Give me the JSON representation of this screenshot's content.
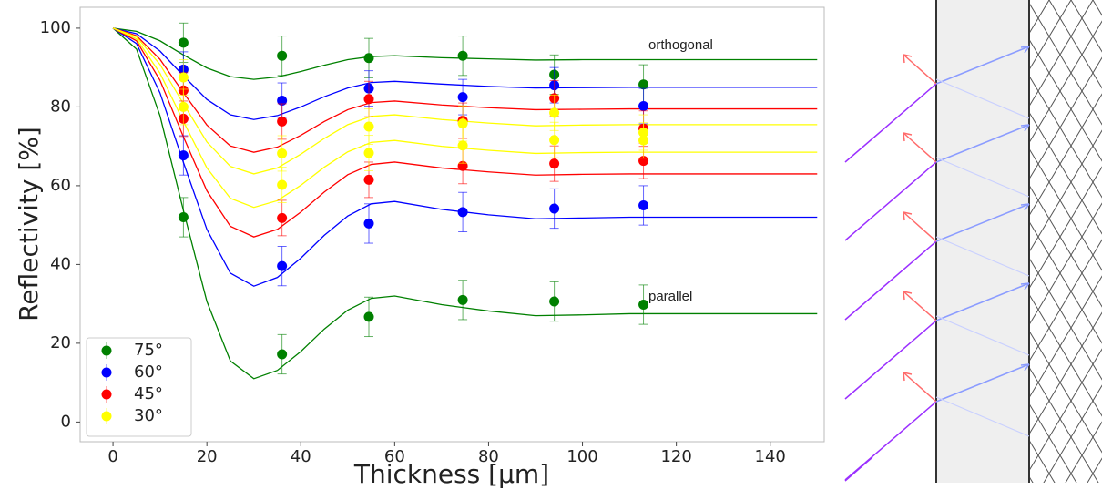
{
  "chart_data": {
    "type": "scatter",
    "xlabel": "Thickness [µm]",
    "ylabel": "Reflectivity [%]",
    "xlim": [
      -7,
      151.5
    ],
    "ylim": [
      -5,
      105.3
    ],
    "xticks": [
      0,
      20,
      40,
      60,
      80,
      100,
      120,
      140
    ],
    "yticks": [
      0,
      20,
      40,
      60,
      80,
      100
    ],
    "legend": "lower left",
    "annotations": [
      "orthogonal",
      "parallel"
    ],
    "x": [
      15,
      36,
      54.5,
      74.5,
      94,
      113
    ],
    "fit_x": [
      0,
      5,
      10,
      15,
      20,
      25,
      30,
      35,
      40,
      45,
      50,
      55,
      60,
      70,
      80,
      90,
      100,
      110,
      120,
      130,
      140,
      150
    ],
    "series": [
      {
        "name": "75°",
        "color": "#008000",
        "groups": [
          {
            "values": [
              96.3,
              93,
              92.4,
              93,
              88.2,
              85.7
            ],
            "error": 5,
            "fit": [
              100,
              99.2,
              96.8,
              93.2,
              89.9,
              87.7,
              87,
              87.6,
              89,
              90.6,
              92,
              92.8,
              93,
              92.5,
              92.2,
              91.9,
              92,
              92,
              92,
              92,
              92,
              92
            ]
          },
          {
            "values": [
              52,
              17.2,
              26.7,
              31,
              30.6,
              29.8
            ],
            "error": 5,
            "fit": [
              100,
              94.7,
              77.8,
              53.7,
              30.6,
              15.5,
              11,
              13.1,
              17.9,
              23.6,
              28.4,
              31.4,
              32,
              29.8,
              28.2,
              27,
              27.2,
              27.5,
              27.5,
              27.5,
              27.5,
              27.5
            ]
          }
        ]
      },
      {
        "name": "60°",
        "color": "#0000ff",
        "groups": [
          {
            "values": [
              89.5,
              81.6,
              84.7,
              82.5,
              85.5,
              80.2
            ],
            "error": 4.5,
            "fit": [
              100,
              98.6,
              94.2,
              87.9,
              81.9,
              78,
              76.8,
              77.8,
              80,
              82.6,
              84.8,
              86.2,
              86.5,
              85.8,
              85.2,
              84.8,
              84.9,
              85,
              85,
              85,
              85,
              85
            ]
          },
          {
            "values": [
              67.7,
              39.6,
              50.4,
              53.3,
              54.2,
              55
            ],
            "error": 5,
            "fit": [
              100,
              96.1,
              83.6,
              65.9,
              48.9,
              37.8,
              34.5,
              36.7,
              41.6,
              47.4,
              52.3,
              55.4,
              56,
              54,
              52.6,
              51.6,
              51.8,
              52,
              52,
              52,
              52,
              52
            ]
          }
        ]
      },
      {
        "name": "45°",
        "color": "#ff0000",
        "groups": [
          {
            "values": [
              84.2,
              76.3,
              82,
              76.5,
              82.2,
              74.5
            ],
            "error": 4.5,
            "fit": [
              100,
              98.1,
              92.1,
              83.6,
              75.4,
              70.1,
              68.5,
              69.8,
              72.8,
              76.3,
              79.3,
              81.1,
              81.5,
              80.5,
              79.8,
              79.3,
              79.4,
              79.5,
              79.5,
              79.5,
              79.5,
              79.5
            ]
          },
          {
            "values": [
              77,
              51.8,
              61.5,
              65,
              65.6,
              66.3
            ],
            "error": 4.5,
            "fit": [
              100,
              96.8,
              86.8,
              72.4,
              58.7,
              49.7,
              47,
              48.9,
              53.3,
              58.4,
              62.8,
              65.4,
              66,
              64.5,
              63.5,
              62.7,
              62.9,
              63,
              63,
              63,
              63,
              63
            ]
          }
        ]
      },
      {
        "name": "30°",
        "color": "#ffff00",
        "groups": [
          {
            "values": [
              87.5,
              68.2,
              75,
              75.8,
              78.5,
              73.5
            ],
            "error": 4.5,
            "fit": [
              100,
              97.8,
              90.8,
              80.8,
              71.1,
              64.9,
              63,
              64.5,
              68,
              72,
              75.5,
              77.6,
              78,
              76.8,
              75.9,
              75.2,
              75.4,
              75.5,
              75.5,
              75.5,
              75.5,
              75.5
            ]
          },
          {
            "values": [
              80,
              60.2,
              68.3,
              70.2,
              71.6,
              71.5
            ],
            "error": 4.5,
            "fit": [
              100,
              97.3,
              88.6,
              76.3,
              64.5,
              56.8,
              54.5,
              56.2,
              60.1,
              64.7,
              68.6,
              71,
              71.5,
              70,
              69,
              68.2,
              68.4,
              68.5,
              68.5,
              68.5,
              68.5,
              68.5
            ]
          }
        ]
      }
    ]
  }
}
